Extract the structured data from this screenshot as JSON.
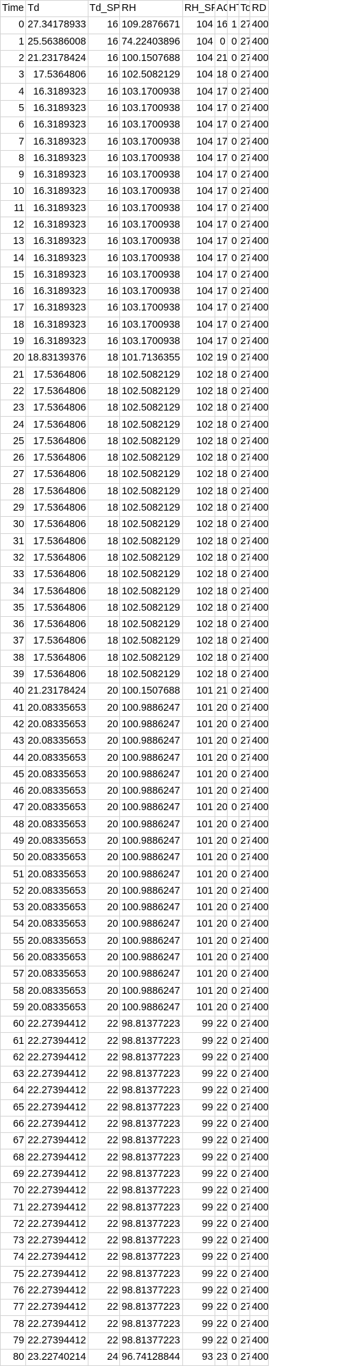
{
  "columns": [
    "Time",
    "Td",
    "Td_SP",
    "RH",
    "RH_SP",
    "AC",
    "HT",
    "To",
    "RD"
  ],
  "rows": [
    [
      "0",
      "27.34178933",
      "16",
      "109.2876671",
      "104",
      "16",
      "1",
      "27",
      "400"
    ],
    [
      "1",
      "25.56386008",
      "16",
      "74.22403896",
      "104",
      "0",
      "0",
      "27",
      "400"
    ],
    [
      "2",
      "21.23178424",
      "16",
      "100.1507688",
      "104",
      "21",
      "0",
      "27",
      "400"
    ],
    [
      "3",
      "17.5364806",
      "16",
      "102.5082129",
      "104",
      "18",
      "0",
      "27",
      "400"
    ],
    [
      "4",
      "16.3189323",
      "16",
      "103.1700938",
      "104",
      "17",
      "0",
      "27",
      "400"
    ],
    [
      "5",
      "16.3189323",
      "16",
      "103.1700938",
      "104",
      "17",
      "0",
      "27",
      "400"
    ],
    [
      "6",
      "16.3189323",
      "16",
      "103.1700938",
      "104",
      "17",
      "0",
      "27",
      "400"
    ],
    [
      "7",
      "16.3189323",
      "16",
      "103.1700938",
      "104",
      "17",
      "0",
      "27",
      "400"
    ],
    [
      "8",
      "16.3189323",
      "16",
      "103.1700938",
      "104",
      "17",
      "0",
      "27",
      "400"
    ],
    [
      "9",
      "16.3189323",
      "16",
      "103.1700938",
      "104",
      "17",
      "0",
      "27",
      "400"
    ],
    [
      "10",
      "16.3189323",
      "16",
      "103.1700938",
      "104",
      "17",
      "0",
      "27",
      "400"
    ],
    [
      "11",
      "16.3189323",
      "16",
      "103.1700938",
      "104",
      "17",
      "0",
      "27",
      "400"
    ],
    [
      "12",
      "16.3189323",
      "16",
      "103.1700938",
      "104",
      "17",
      "0",
      "27",
      "400"
    ],
    [
      "13",
      "16.3189323",
      "16",
      "103.1700938",
      "104",
      "17",
      "0",
      "27",
      "400"
    ],
    [
      "14",
      "16.3189323",
      "16",
      "103.1700938",
      "104",
      "17",
      "0",
      "27",
      "400"
    ],
    [
      "15",
      "16.3189323",
      "16",
      "103.1700938",
      "104",
      "17",
      "0",
      "27",
      "400"
    ],
    [
      "16",
      "16.3189323",
      "16",
      "103.1700938",
      "104",
      "17",
      "0",
      "27",
      "400"
    ],
    [
      "17",
      "16.3189323",
      "16",
      "103.1700938",
      "104",
      "17",
      "0",
      "27",
      "400"
    ],
    [
      "18",
      "16.3189323",
      "16",
      "103.1700938",
      "104",
      "17",
      "0",
      "27",
      "400"
    ],
    [
      "19",
      "16.3189323",
      "16",
      "103.1700938",
      "104",
      "17",
      "0",
      "27",
      "400"
    ],
    [
      "20",
      "18.83139376",
      "18",
      "101.7136355",
      "102",
      "19",
      "0",
      "27",
      "400"
    ],
    [
      "21",
      "17.5364806",
      "18",
      "102.5082129",
      "102",
      "18",
      "0",
      "27",
      "400"
    ],
    [
      "22",
      "17.5364806",
      "18",
      "102.5082129",
      "102",
      "18",
      "0",
      "27",
      "400"
    ],
    [
      "23",
      "17.5364806",
      "18",
      "102.5082129",
      "102",
      "18",
      "0",
      "27",
      "400"
    ],
    [
      "24",
      "17.5364806",
      "18",
      "102.5082129",
      "102",
      "18",
      "0",
      "27",
      "400"
    ],
    [
      "25",
      "17.5364806",
      "18",
      "102.5082129",
      "102",
      "18",
      "0",
      "27",
      "400"
    ],
    [
      "26",
      "17.5364806",
      "18",
      "102.5082129",
      "102",
      "18",
      "0",
      "27",
      "400"
    ],
    [
      "27",
      "17.5364806",
      "18",
      "102.5082129",
      "102",
      "18",
      "0",
      "27",
      "400"
    ],
    [
      "28",
      "17.5364806",
      "18",
      "102.5082129",
      "102",
      "18",
      "0",
      "27",
      "400"
    ],
    [
      "29",
      "17.5364806",
      "18",
      "102.5082129",
      "102",
      "18",
      "0",
      "27",
      "400"
    ],
    [
      "30",
      "17.5364806",
      "18",
      "102.5082129",
      "102",
      "18",
      "0",
      "27",
      "400"
    ],
    [
      "31",
      "17.5364806",
      "18",
      "102.5082129",
      "102",
      "18",
      "0",
      "27",
      "400"
    ],
    [
      "32",
      "17.5364806",
      "18",
      "102.5082129",
      "102",
      "18",
      "0",
      "27",
      "400"
    ],
    [
      "33",
      "17.5364806",
      "18",
      "102.5082129",
      "102",
      "18",
      "0",
      "27",
      "400"
    ],
    [
      "34",
      "17.5364806",
      "18",
      "102.5082129",
      "102",
      "18",
      "0",
      "27",
      "400"
    ],
    [
      "35",
      "17.5364806",
      "18",
      "102.5082129",
      "102",
      "18",
      "0",
      "27",
      "400"
    ],
    [
      "36",
      "17.5364806",
      "18",
      "102.5082129",
      "102",
      "18",
      "0",
      "27",
      "400"
    ],
    [
      "37",
      "17.5364806",
      "18",
      "102.5082129",
      "102",
      "18",
      "0",
      "27",
      "400"
    ],
    [
      "38",
      "17.5364806",
      "18",
      "102.5082129",
      "102",
      "18",
      "0",
      "27",
      "400"
    ],
    [
      "39",
      "17.5364806",
      "18",
      "102.5082129",
      "102",
      "18",
      "0",
      "27",
      "400"
    ],
    [
      "40",
      "21.23178424",
      "20",
      "100.1507688",
      "101",
      "21",
      "0",
      "27",
      "400"
    ],
    [
      "41",
      "20.08335653",
      "20",
      "100.9886247",
      "101",
      "20",
      "0",
      "27",
      "400"
    ],
    [
      "42",
      "20.08335653",
      "20",
      "100.9886247",
      "101",
      "20",
      "0",
      "27",
      "400"
    ],
    [
      "43",
      "20.08335653",
      "20",
      "100.9886247",
      "101",
      "20",
      "0",
      "27",
      "400"
    ],
    [
      "44",
      "20.08335653",
      "20",
      "100.9886247",
      "101",
      "20",
      "0",
      "27",
      "400"
    ],
    [
      "45",
      "20.08335653",
      "20",
      "100.9886247",
      "101",
      "20",
      "0",
      "27",
      "400"
    ],
    [
      "46",
      "20.08335653",
      "20",
      "100.9886247",
      "101",
      "20",
      "0",
      "27",
      "400"
    ],
    [
      "47",
      "20.08335653",
      "20",
      "100.9886247",
      "101",
      "20",
      "0",
      "27",
      "400"
    ],
    [
      "48",
      "20.08335653",
      "20",
      "100.9886247",
      "101",
      "20",
      "0",
      "27",
      "400"
    ],
    [
      "49",
      "20.08335653",
      "20",
      "100.9886247",
      "101",
      "20",
      "0",
      "27",
      "400"
    ],
    [
      "50",
      "20.08335653",
      "20",
      "100.9886247",
      "101",
      "20",
      "0",
      "27",
      "400"
    ],
    [
      "51",
      "20.08335653",
      "20",
      "100.9886247",
      "101",
      "20",
      "0",
      "27",
      "400"
    ],
    [
      "52",
      "20.08335653",
      "20",
      "100.9886247",
      "101",
      "20",
      "0",
      "27",
      "400"
    ],
    [
      "53",
      "20.08335653",
      "20",
      "100.9886247",
      "101",
      "20",
      "0",
      "27",
      "400"
    ],
    [
      "54",
      "20.08335653",
      "20",
      "100.9886247",
      "101",
      "20",
      "0",
      "27",
      "400"
    ],
    [
      "55",
      "20.08335653",
      "20",
      "100.9886247",
      "101",
      "20",
      "0",
      "27",
      "400"
    ],
    [
      "56",
      "20.08335653",
      "20",
      "100.9886247",
      "101",
      "20",
      "0",
      "27",
      "400"
    ],
    [
      "57",
      "20.08335653",
      "20",
      "100.9886247",
      "101",
      "20",
      "0",
      "27",
      "400"
    ],
    [
      "58",
      "20.08335653",
      "20",
      "100.9886247",
      "101",
      "20",
      "0",
      "27",
      "400"
    ],
    [
      "59",
      "20.08335653",
      "20",
      "100.9886247",
      "101",
      "20",
      "0",
      "27",
      "400"
    ],
    [
      "60",
      "22.27394412",
      "22",
      "98.81377223",
      "99",
      "22",
      "0",
      "27",
      "400"
    ],
    [
      "61",
      "22.27394412",
      "22",
      "98.81377223",
      "99",
      "22",
      "0",
      "27",
      "400"
    ],
    [
      "62",
      "22.27394412",
      "22",
      "98.81377223",
      "99",
      "22",
      "0",
      "27",
      "400"
    ],
    [
      "63",
      "22.27394412",
      "22",
      "98.81377223",
      "99",
      "22",
      "0",
      "27",
      "400"
    ],
    [
      "64",
      "22.27394412",
      "22",
      "98.81377223",
      "99",
      "22",
      "0",
      "27",
      "400"
    ],
    [
      "65",
      "22.27394412",
      "22",
      "98.81377223",
      "99",
      "22",
      "0",
      "27",
      "400"
    ],
    [
      "66",
      "22.27394412",
      "22",
      "98.81377223",
      "99",
      "22",
      "0",
      "27",
      "400"
    ],
    [
      "67",
      "22.27394412",
      "22",
      "98.81377223",
      "99",
      "22",
      "0",
      "27",
      "400"
    ],
    [
      "68",
      "22.27394412",
      "22",
      "98.81377223",
      "99",
      "22",
      "0",
      "27",
      "400"
    ],
    [
      "69",
      "22.27394412",
      "22",
      "98.81377223",
      "99",
      "22",
      "0",
      "27",
      "400"
    ],
    [
      "70",
      "22.27394412",
      "22",
      "98.81377223",
      "99",
      "22",
      "0",
      "27",
      "400"
    ],
    [
      "71",
      "22.27394412",
      "22",
      "98.81377223",
      "99",
      "22",
      "0",
      "27",
      "400"
    ],
    [
      "72",
      "22.27394412",
      "22",
      "98.81377223",
      "99",
      "22",
      "0",
      "27",
      "400"
    ],
    [
      "73",
      "22.27394412",
      "22",
      "98.81377223",
      "99",
      "22",
      "0",
      "27",
      "400"
    ],
    [
      "74",
      "22.27394412",
      "22",
      "98.81377223",
      "99",
      "22",
      "0",
      "27",
      "400"
    ],
    [
      "75",
      "22.27394412",
      "22",
      "98.81377223",
      "99",
      "22",
      "0",
      "27",
      "400"
    ],
    [
      "76",
      "22.27394412",
      "22",
      "98.81377223",
      "99",
      "22",
      "0",
      "27",
      "400"
    ],
    [
      "77",
      "22.27394412",
      "22",
      "98.81377223",
      "99",
      "22",
      "0",
      "27",
      "400"
    ],
    [
      "78",
      "22.27394412",
      "22",
      "98.81377223",
      "99",
      "22",
      "0",
      "27",
      "400"
    ],
    [
      "79",
      "22.27394412",
      "22",
      "98.81377223",
      "99",
      "22",
      "0",
      "27",
      "400"
    ],
    [
      "80",
      "23.22740214",
      "24",
      "96.74128844",
      "93",
      "23",
      "0",
      "27",
      "400"
    ]
  ]
}
